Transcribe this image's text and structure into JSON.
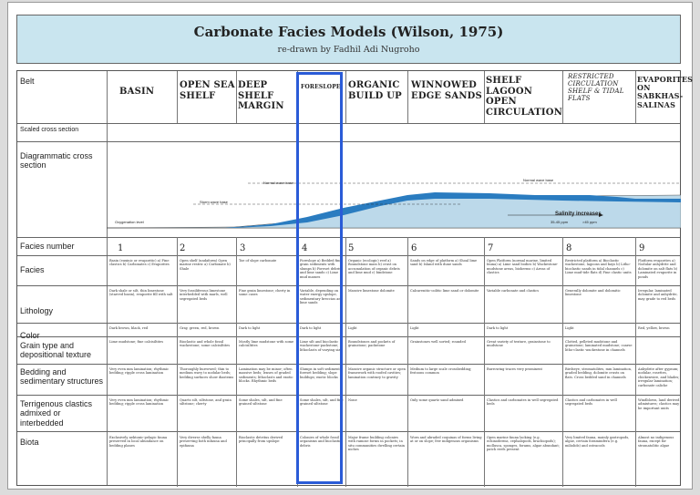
{
  "title": "Carbonate Facies Models (Wilson, 1975)",
  "subtitle": "re-drawn by Fadhil Adi Nugroho",
  "row_labels": {
    "belt": "Belt",
    "scaled": "Scaled cross section",
    "diagram": "Diagrammatic cross section",
    "facies_number": "Facies number",
    "facies": "Facies",
    "lithology": "Lithology",
    "color": "Color",
    "grain": "Grain type and depositional texture",
    "bedding": "Bedding and sedimentary structures",
    "terrig": "Terrigenous clastics admixed or interbedded",
    "biota": "Biota"
  },
  "belts": [
    "BASIN",
    "OPEN SEA SHELF",
    "DEEP SHELF MARGIN",
    "FORESLOPE",
    "ORGANIC BUILD UP",
    "WINNOWED EDGE SANDS",
    "SHELF LAGOON OPEN CIRCULATION",
    "RESTRICTED CIRCULATION SHELF & TIDAL FLATS",
    "EVAPORITES ON SABKHAS-SALINAS"
  ],
  "numbers": [
    "1",
    "2",
    "3",
    "4",
    "5",
    "6",
    "7",
    "8",
    "9"
  ],
  "diagram_labels": {
    "normal_wave": "Normal wave base",
    "normal_wave2": "Normal wave base",
    "storm_wave": "Storm wave base",
    "oxygenation": "Oxygenation level",
    "salinity": "Salinity increases",
    "ppt1": "35-45 ppm",
    "ppt2": ">45 ppm"
  },
  "facies": [
    "Basin (euxinic or evaporitic) a) Fine clastics b) Carbonates c) Evaporites",
    "Open shelf (undaform) Open marine restric a) Carbonate b) Shale",
    "Toe of slope carbonate",
    "Foreslope a) Bedded fine grain sediments with slumps b) Foreset debris and lime sands c) Lime mud masses",
    "Organic (ecologic) reef a) Boundstone mass b) crust on accumulation of organic debris and lime mud c) bindstone",
    "Sands on edge of platform a) Shoal lime sand b) Island with dune sands",
    "Open Platform (normal marine, limited fauna) a) Lime sand bodies b) Wackestone-mudstone areas, bioherms c) Areas of clastics",
    "Restricted platform a) Bioclastic wackestone, lagoons and bays b) Litho-bioclastic sands in tidal channels c) Lime mud-tide flats d) Fine clastic units",
    "Platform evaporites a) Nodular anhydrite and dolomite on salt flats b) Laminated evaporite in ponds"
  ],
  "lithology": [
    "Dark shale or silt, thin limestone (starved basin), evaporite fill with salt",
    "Very fossiliferous limestone interbedded with marls, well segregated beds",
    "Fine grain limestone; cherty in some cases",
    "Variable, depending on water energy upslope, sedimentary breccias and lime sands",
    "Massive limestone dolomite",
    "Calcarenitic-oolitic lime sand or dolomite",
    "Variable carbonate and clastics",
    "Generally dolomite and dolomitic limestone",
    "Irregular, laminated dolomite and anhydrite, may grade to red beds"
  ],
  "color": [
    "Dark brown, black, red",
    "Gray, green, red, brown",
    "Dark to light",
    "Dark to light",
    "Light",
    "Light",
    "Dark to light",
    "Light",
    "Red, yellow, brown"
  ],
  "grain": [
    "Lime mudstone; fine calcisiltites",
    "Bioclastic and whole fossil wackestone; some calcisiltites",
    "Mostly lime mudstone with some calcisiltites",
    "Lime silt and bioclastic wackestone-packstone; lithoclasts of varying size",
    "Boundstones and pockets of grainstone; packstone",
    "Grainstones well sorted; rounded",
    "Great variety of texture, grainstone to mudstone",
    "Clotted, pelleted mudstone and grainstone; laminated mudstone; coarse litho-clastic wackestone in channels",
    ""
  ],
  "bedding": [
    "Very even mm lamination; rhythmic bedding; ripple cross lamination",
    "Thoroughly burrowed; thin to medium wavy to nodular beds; bedding surfaces show diastems",
    "Lamination may be minor; often massive beds; lenses of graded sediments; lithoclasts and exotic blocks. Rhythmic beds",
    "Slumps in soft sediments; foreset bedding; slope buildups; exotic blocks",
    "Massive organic structure or open framework with roofed cavities; lamination contrary to gravity",
    "Medium to large scale crossbedding; festoons common",
    "Burrowing traces very prominent",
    "Birdseye, stromatolites, mm lamination, graded bedding, dolomite crusts on flats. Cross bedded sand in channels",
    "Anhydrite after gypsum; nodular, rosettes, chickenwire, and blades; irregular lamination; carbonate caliche"
  ],
  "terrig": [
    "Very even mm lamination; rhythmic bedding; ripple cross lamination",
    "Quartz silt, siltstone, and grain siltstone; cherty",
    "Some shales, silt, and fine grained siltstone",
    "Some shales, silt, and fine grained siltstone",
    "None",
    "Only some quartz sand admixed",
    "Clastics and carbonates in well segregated beds",
    "Clastics and carbonates in well segregated beds",
    "Windblown, land derived admixtures; clastics may be important units"
  ],
  "biota": [
    "Exclusively nektonic-pelagic fauna preserved in local abundance on bedding planes",
    "Very diverse shelly fauna preserving both infauna and epifauna",
    "Bioclastic detritus derived principally from upslope",
    "Colonies of whole fossil organisms and bioclastic debris",
    "Major frame building colonies with ramose forms in pockets; in situ communities dwelling certain niches",
    "Worn and abraded coquinas of forms living at or on slope; few indigenous organisms",
    "Open marine fauna lacking (e.g. echinoderms, cephalopods, brachiopods); mollusca, sponges, forams, algae abundant; patch reefs present",
    "Very limited fauna, mainly gastropods, algae, certain foraminifera (e.g. miliolids) and ostracods",
    "Almost no indigenous fauna, except for stromatolitic algae"
  ]
}
